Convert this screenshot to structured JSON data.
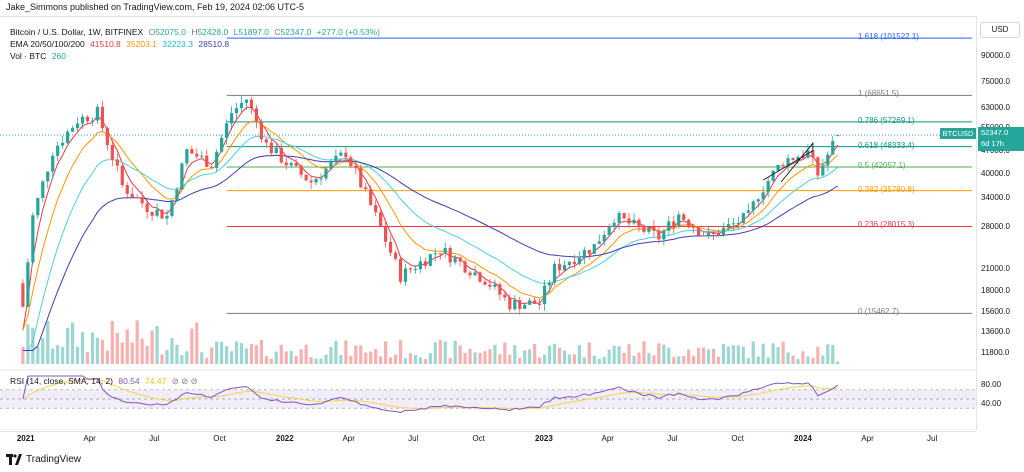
{
  "header": {
    "publisher_line": "Jake_Simmons published on TradingView.com, Feb 19, 2024 02:06 UTC-5"
  },
  "legend": {
    "symbol_line": "Bitcoin / U.S. Dollar, 1W, BITFINEX",
    "o_label": "O",
    "o_value": "52075.0",
    "h_label": "H",
    "h_value": "52428.0",
    "l_label": "L",
    "l_value": "51897.0",
    "c_label": "C",
    "c_value": "52347.0",
    "change": "+277.0 (+0.53%)",
    "ema_label": "EMA 20/50/100/200",
    "ema_values": [
      "41510.8",
      "35203.1",
      "32223.3",
      "28510.8"
    ],
    "vol_label": "Vol · BTC",
    "vol_value": "260"
  },
  "rsi_legend": {
    "label": "RSI (14, close, SMA, 14, 2)",
    "value1": "80.54",
    "value2": "74.47"
  },
  "price_axis": {
    "currency": "USD",
    "labels": [
      "90000.0",
      "75000.0",
      "63000.0",
      "55000.0",
      "47000.0",
      "40000.0",
      "34000.0",
      "28000.0",
      "21000.0",
      "18000.0",
      "15600.0",
      "13600.0",
      "11800.0"
    ],
    "rsi_labels": [
      "80.00",
      "40.00"
    ]
  },
  "time_axis": {
    "labels": [
      "2021",
      "Apr",
      "Jul",
      "Oct",
      "2022",
      "Apr",
      "Jul",
      "Oct",
      "2023",
      "Apr",
      "Jul",
      "Oct",
      "2024",
      "Apr",
      "Jul"
    ]
  },
  "last_price": {
    "symbol": "BTCUSD",
    "price": "52347.0",
    "countdown": "6d 17h"
  },
  "footer": {
    "brand": "TradingView"
  },
  "colors": {
    "up": "#26a69a",
    "down": "#ef5350",
    "ema20": "#f23645",
    "ema50": "#ff9800",
    "ema100": "#4dd0e1",
    "ema200": "#3f3fb0",
    "rsi": "#7e57c2",
    "rsi_ma": "#f7d34a"
  },
  "chart_data": {
    "type": "candlestick",
    "timeframe": "1W",
    "symbol": "BTCUSD",
    "scale": "log",
    "ylim": [
      11800,
      110000
    ],
    "fib_levels": [
      {
        "ratio": "1.618",
        "price": 101522.1,
        "label": "1.618 (101522.1)",
        "color": "#2962ff"
      },
      {
        "ratio": "1",
        "price": 68651.5,
        "label": "1 (68651.5)",
        "color": "#787b86"
      },
      {
        "ratio": "0.786",
        "price": 57269.1,
        "label": "0.786 (57269.1)",
        "color": "#089981"
      },
      {
        "ratio": "0.618",
        "price": 48333.4,
        "label": "0.618 (48333.4)",
        "color": "#089981"
      },
      {
        "ratio": "0.5",
        "price": 42057.1,
        "label": "0.5 (42057.1)",
        "color": "#4caf50"
      },
      {
        "ratio": "0.382",
        "price": 35780.8,
        "label": "0.382 (35780.8)",
        "color": "#ff9800"
      },
      {
        "ratio": "0.236",
        "price": 28015.3,
        "label": "0.236 (28015.3)",
        "color": "#f23645"
      },
      {
        "ratio": "0",
        "price": 15462.7,
        "label": "0 (15462.7)",
        "color": "#787b86"
      }
    ],
    "close_series": [
      {
        "date": "2020-12-28",
        "close": 16200
      },
      {
        "date": "2021-01-11",
        "close": 30000
      },
      {
        "date": "2021-02-08",
        "close": 47000
      },
      {
        "date": "2021-03-15",
        "close": 58000
      },
      {
        "date": "2021-04-12",
        "close": 61000
      },
      {
        "date": "2021-05-17",
        "close": 37000
      },
      {
        "date": "2021-06-21",
        "close": 32000
      },
      {
        "date": "2021-07-19",
        "close": 30000
      },
      {
        "date": "2021-08-16",
        "close": 47000
      },
      {
        "date": "2021-09-20",
        "close": 43000
      },
      {
        "date": "2021-10-18",
        "close": 61000
      },
      {
        "date": "2021-11-08",
        "close": 67000
      },
      {
        "date": "2021-12-06",
        "close": 49000
      },
      {
        "date": "2022-01-10",
        "close": 42000
      },
      {
        "date": "2022-02-07",
        "close": 38000
      },
      {
        "date": "2022-03-28",
        "close": 46500
      },
      {
        "date": "2022-05-09",
        "close": 30000
      },
      {
        "date": "2022-06-13",
        "close": 20000
      },
      {
        "date": "2022-08-08",
        "close": 24000
      },
      {
        "date": "2022-10-10",
        "close": 19500
      },
      {
        "date": "2022-11-14",
        "close": 16500
      },
      {
        "date": "2022-12-26",
        "close": 16600
      },
      {
        "date": "2023-01-16",
        "close": 21000
      },
      {
        "date": "2023-03-13",
        "close": 24500
      },
      {
        "date": "2023-04-10",
        "close": 30000
      },
      {
        "date": "2023-06-12",
        "close": 26000
      },
      {
        "date": "2023-07-10",
        "close": 30500
      },
      {
        "date": "2023-08-21",
        "close": 26000
      },
      {
        "date": "2023-10-16",
        "close": 30000
      },
      {
        "date": "2023-10-30",
        "close": 35000
      },
      {
        "date": "2023-12-04",
        "close": 44000
      },
      {
        "date": "2024-01-08",
        "close": 46500
      },
      {
        "date": "2024-01-22",
        "close": 40000
      },
      {
        "date": "2024-02-19",
        "close": 52347
      }
    ],
    "ema_series": [
      {
        "name": "EMA 20",
        "last": 41510.8
      },
      {
        "name": "EMA 50",
        "last": 35203.1
      },
      {
        "name": "EMA 100",
        "last": 32223.3
      },
      {
        "name": "EMA 200",
        "last": 28510.8
      }
    ],
    "rsi": {
      "length": 14,
      "value": 80.54,
      "ma_value": 74.47,
      "levels": [
        70,
        50,
        30
      ]
    }
  }
}
